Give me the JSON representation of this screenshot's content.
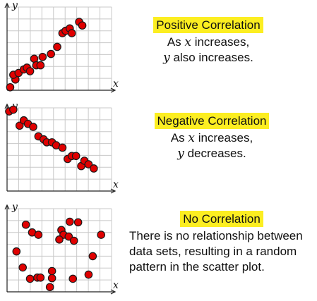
{
  "panels": [
    {
      "title": "Positive Correlation",
      "line1_pre": "As ",
      "line1_var": "x",
      "line1_post": " increases,",
      "line2_var": "y",
      "line2_post": " also increases."
    },
    {
      "title": "Negative Correlation",
      "line1_pre": "As ",
      "line1_var": "x",
      "line1_post": " increases,",
      "line2_var": "y",
      "line2_post": " decreases."
    },
    {
      "title": "No Correlation",
      "line1": "There is no relationship between",
      "line2": "data sets, resulting in a random",
      "line3": "pattern in the scatter plot."
    }
  ],
  "colors": {
    "highlight": "#fcee21",
    "point_fill": "#e00000",
    "grid": "#c8c8c8"
  },
  "chart_data": [
    {
      "type": "scatter",
      "xlabel": "x",
      "ylabel": "y",
      "xlim": [
        0,
        10
      ],
      "ylim": [
        0,
        7
      ],
      "grid": true,
      "points": [
        [
          0.3,
          0.25
        ],
        [
          0.8,
          0.9
        ],
        [
          0.6,
          1.3
        ],
        [
          1.1,
          1.45
        ],
        [
          1.6,
          1.75
        ],
        [
          1.9,
          1.9
        ],
        [
          2.2,
          1.6
        ],
        [
          2.6,
          2.65
        ],
        [
          2.8,
          2.1
        ],
        [
          3.2,
          2.1
        ],
        [
          3.4,
          2.8
        ],
        [
          4.2,
          3.05
        ],
        [
          4.8,
          3.65
        ],
        [
          5.3,
          4.8
        ],
        [
          5.6,
          5.0
        ],
        [
          6.0,
          5.2
        ],
        [
          6.2,
          4.8
        ],
        [
          6.9,
          5.75
        ],
        [
          7.2,
          5.45
        ]
      ]
    },
    {
      "type": "scatter",
      "xlabel": "x",
      "ylabel": "y",
      "xlim": [
        0,
        10
      ],
      "ylim": [
        0,
        7
      ],
      "grid": true,
      "points": [
        [
          0.2,
          6.7
        ],
        [
          0.6,
          6.85
        ],
        [
          1.2,
          5.5
        ],
        [
          1.6,
          5.95
        ],
        [
          2.0,
          5.65
        ],
        [
          2.5,
          5.4
        ],
        [
          3.0,
          4.6
        ],
        [
          3.5,
          4.35
        ],
        [
          3.8,
          4.1
        ],
        [
          4.3,
          4.1
        ],
        [
          4.7,
          3.85
        ],
        [
          5.3,
          3.65
        ],
        [
          5.8,
          2.7
        ],
        [
          6.2,
          2.95
        ],
        [
          6.6,
          2.95
        ],
        [
          7.1,
          2.1
        ],
        [
          7.4,
          2.55
        ],
        [
          7.8,
          2.25
        ],
        [
          8.3,
          1.9
        ]
      ]
    },
    {
      "type": "scatter",
      "xlabel": "x",
      "ylabel": "y",
      "xlim": [
        0,
        10
      ],
      "ylim": [
        0,
        7
      ],
      "grid": true,
      "points": [
        [
          1.8,
          5.65
        ],
        [
          2.4,
          5.0
        ],
        [
          0.9,
          3.4
        ],
        [
          3.0,
          4.8
        ],
        [
          6.0,
          5.9
        ],
        [
          5.2,
          5.2
        ],
        [
          5.4,
          4.8
        ],
        [
          6.8,
          5.85
        ],
        [
          5.0,
          4.4
        ],
        [
          5.9,
          4.65
        ],
        [
          6.4,
          4.3
        ],
        [
          9.0,
          4.8
        ],
        [
          8.2,
          3.0
        ],
        [
          1.5,
          2.05
        ],
        [
          2.2,
          1.1
        ],
        [
          2.9,
          1.2
        ],
        [
          3.2,
          1.2
        ],
        [
          4.3,
          1.75
        ],
        [
          4.3,
          1.15
        ],
        [
          4.1,
          0.4
        ],
        [
          6.3,
          1.1
        ],
        [
          7.8,
          1.45
        ]
      ]
    }
  ]
}
